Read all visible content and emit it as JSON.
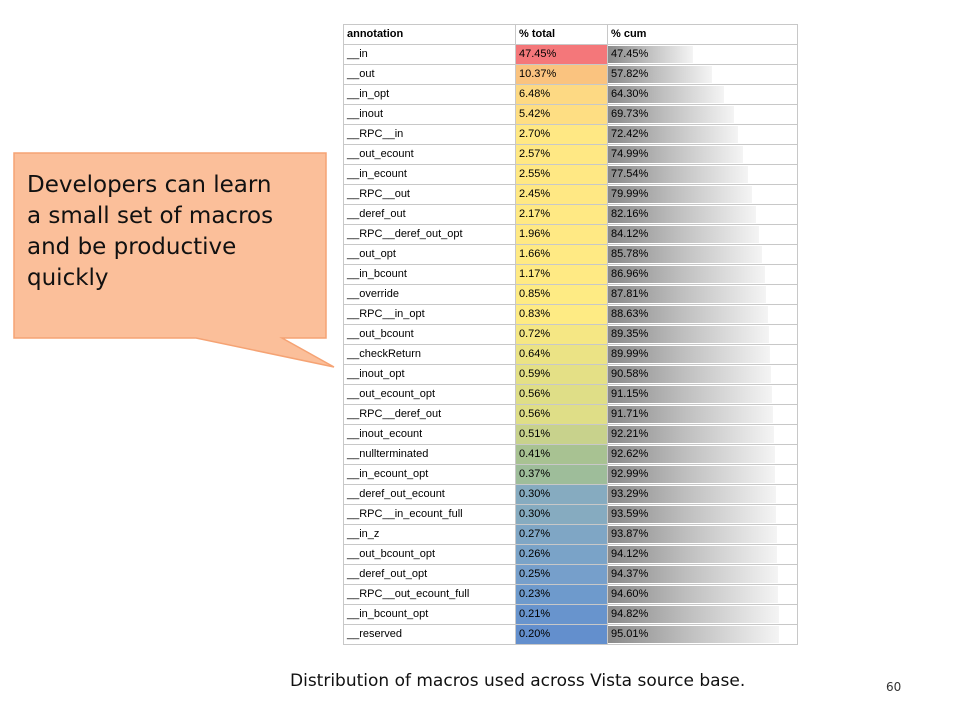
{
  "table": {
    "headers": [
      "annotation",
      "% total",
      "% cum"
    ],
    "rows": [
      {
        "annotation": "__in",
        "total": "47.45%",
        "cum": "47.45%",
        "color": "#f4777a"
      },
      {
        "annotation": "__out",
        "total": "10.37%",
        "cum": "57.82%",
        "color": "#fac37f"
      },
      {
        "annotation": "__in_opt",
        "total": "6.48%",
        "cum": "64.30%",
        "color": "#fdd983"
      },
      {
        "annotation": "__inout",
        "total": "5.42%",
        "cum": "69.73%",
        "color": "#fede83"
      },
      {
        "annotation": "__RPC__in",
        "total": "2.70%",
        "cum": "72.42%",
        "color": "#ffe884"
      },
      {
        "annotation": "__out_ecount",
        "total": "2.57%",
        "cum": "74.99%",
        "color": "#ffe884"
      },
      {
        "annotation": "__in_ecount",
        "total": "2.55%",
        "cum": "77.54%",
        "color": "#ffe884"
      },
      {
        "annotation": "__RPC__out",
        "total": "2.45%",
        "cum": "79.99%",
        "color": "#ffe884"
      },
      {
        "annotation": "__deref_out",
        "total": "2.17%",
        "cum": "82.16%",
        "color": "#ffe984"
      },
      {
        "annotation": "__RPC__deref_out_opt",
        "total": "1.96%",
        "cum": "84.12%",
        "color": "#ffe984"
      },
      {
        "annotation": "__out_opt",
        "total": "1.66%",
        "cum": "85.78%",
        "color": "#ffea84"
      },
      {
        "annotation": "__in_bcount",
        "total": "1.17%",
        "cum": "86.96%",
        "color": "#ffea84"
      },
      {
        "annotation": "__override",
        "total": "0.85%",
        "cum": "87.81%",
        "color": "#feeb84"
      },
      {
        "annotation": "__RPC__in_opt",
        "total": "0.83%",
        "cum": "88.63%",
        "color": "#feeb84"
      },
      {
        "annotation": "__out_bcount",
        "total": "0.72%",
        "cum": "89.35%",
        "color": "#f5e784"
      },
      {
        "annotation": "__checkReturn",
        "total": "0.64%",
        "cum": "89.99%",
        "color": "#ebe385"
      },
      {
        "annotation": "__inout_opt",
        "total": "0.59%",
        "cum": "90.58%",
        "color": "#e4e086"
      },
      {
        "annotation": "__out_ecount_opt",
        "total": "0.56%",
        "cum": "91.15%",
        "color": "#dfde87"
      },
      {
        "annotation": "__RPC__deref_out",
        "total": "0.56%",
        "cum": "91.71%",
        "color": "#dfde87"
      },
      {
        "annotation": "__inout_ecount",
        "total": "0.51%",
        "cum": "92.21%",
        "color": "#c8d28c"
      },
      {
        "annotation": "__nullterminated",
        "total": "0.41%",
        "cum": "92.62%",
        "color": "#a8c292"
      },
      {
        "annotation": "__in_ecount_opt",
        "total": "0.37%",
        "cum": "92.99%",
        "color": "#9ebd9a"
      },
      {
        "annotation": "__deref_out_ecount",
        "total": "0.30%",
        "cum": "93.29%",
        "color": "#86abc0"
      },
      {
        "annotation": "__RPC__in_ecount_full",
        "total": "0.30%",
        "cum": "93.59%",
        "color": "#86abc0"
      },
      {
        "annotation": "__in_z",
        "total": "0.27%",
        "cum": "93.87%",
        "color": "#7fa6c5"
      },
      {
        "annotation": "__out_bcount_opt",
        "total": "0.26%",
        "cum": "94.12%",
        "color": "#7aa3c8"
      },
      {
        "annotation": "__deref_out_opt",
        "total": "0.25%",
        "cum": "94.37%",
        "color": "#769fcb"
      },
      {
        "annotation": "__RPC__out_ecount_full",
        "total": "0.23%",
        "cum": "94.60%",
        "color": "#6e9acc"
      },
      {
        "annotation": "__in_bcount_opt",
        "total": "0.21%",
        "cum": "94.82%",
        "color": "#6894cd"
      },
      {
        "annotation": "__reserved",
        "total": "0.20%",
        "cum": "95.01%",
        "color": "#638fcd"
      }
    ]
  },
  "callout": {
    "lines": [
      "Developers can learn",
      "a small set  of macros",
      "and be productive",
      "quickly"
    ],
    "fill_color": "#fbbf9a",
    "border_color": "#f5a374"
  },
  "caption": "Distribution of  macros used across Vista source base.",
  "page_number": "60"
}
